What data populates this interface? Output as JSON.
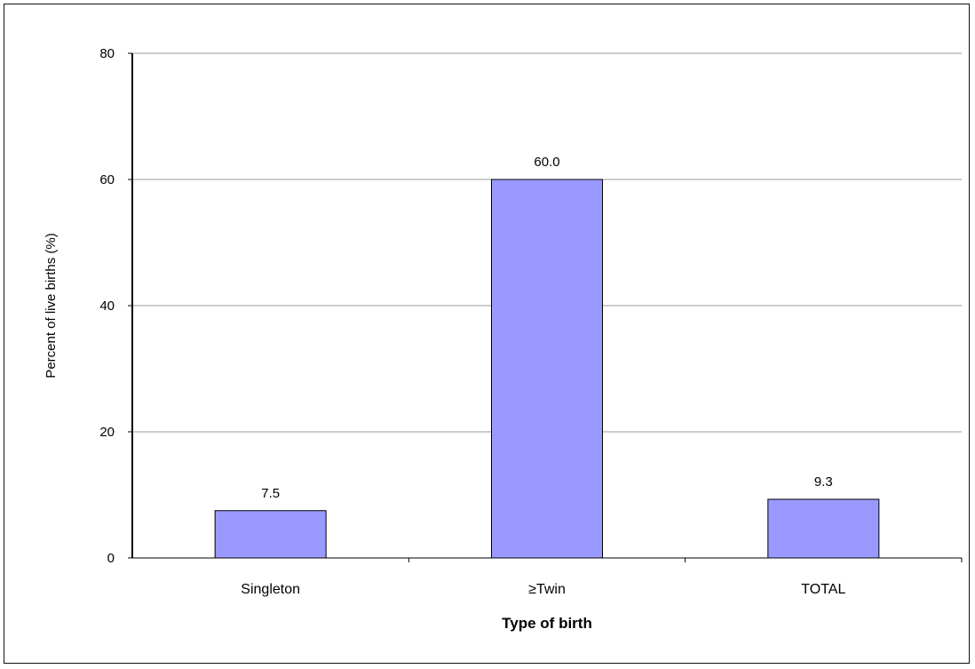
{
  "chart_data": {
    "type": "bar",
    "categories": [
      "Singleton",
      "≥Twin",
      "TOTAL"
    ],
    "values": [
      7.5,
      60.0,
      9.3
    ],
    "data_labels": [
      "7.5",
      "60.0",
      "9.3"
    ],
    "title": "",
    "xlabel": "Type of birth",
    "ylabel": "Percent of live births (%)",
    "ylim": [
      0,
      80
    ],
    "yticks": [
      0,
      20,
      40,
      60,
      80
    ],
    "ytick_labels": [
      "0",
      "20",
      "40",
      "60",
      "80"
    ],
    "grid": true,
    "legend": "none",
    "colors": {
      "bar_fill": "#9999ff",
      "bar_stroke": "#000000",
      "gridline": "#999999",
      "axis": "#000000"
    }
  }
}
